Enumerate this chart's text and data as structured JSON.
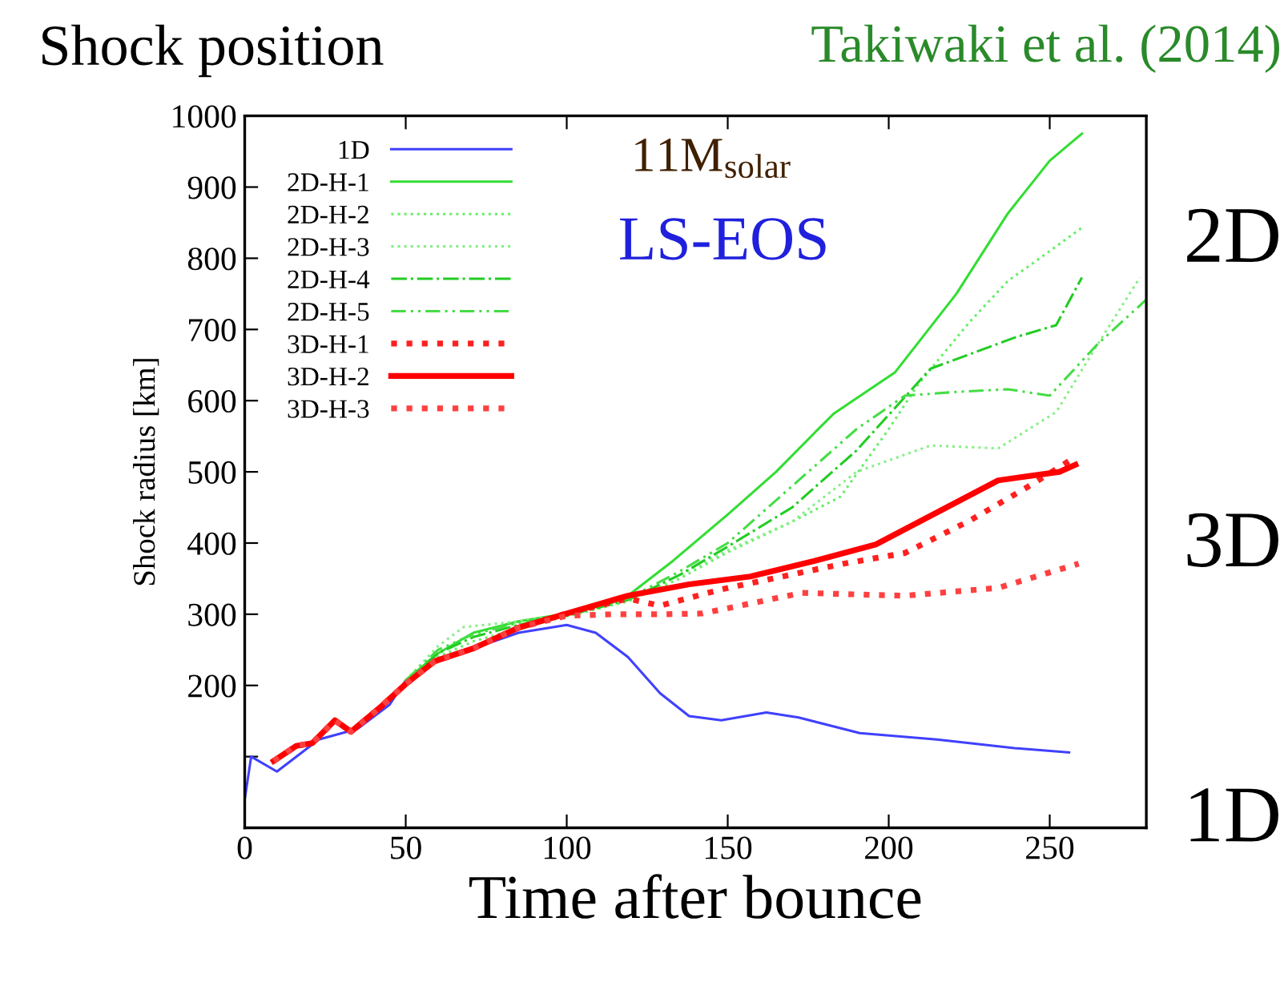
{
  "chart_data": {
    "type": "line",
    "title": "Shock position",
    "xlabel": "Time after bounce",
    "ylabel": "Shock radius [km]",
    "annotations": [
      "Takiwaki et al. (2014)",
      "11M$_{solar}$",
      "LS-EOS",
      "2D",
      "3D",
      "1D"
    ],
    "xlim": [
      0,
      280
    ],
    "xticks": [
      0,
      50,
      100,
      150,
      200,
      250
    ],
    "ylim": [
      0,
      1000
    ],
    "yticks": [
      {
        "value": 0,
        "label": null
      },
      {
        "value": 100,
        "label": null
      },
      200,
      300,
      400,
      500,
      600,
      700,
      800,
      900,
      1000
    ],
    "grid": false,
    "legend": "top left",
    "series": [
      {
        "name": "1D",
        "color": "#4040ff",
        "line_style": "solid",
        "x": [
          0,
          2,
          10,
          23,
          35,
          45,
          50,
          57,
          71,
          85,
          100,
          109,
          119,
          129,
          138,
          148,
          162,
          172,
          191,
          215,
          239,
          256
        ],
        "values": [
          40,
          100,
          79,
          124,
          139,
          173,
          207,
          229,
          252,
          274,
          285,
          274,
          240,
          189,
          157,
          151,
          162,
          155,
          133,
          124,
          112,
          106
        ]
      },
      {
        "name": "2D-H-1",
        "color": "#33dd33",
        "line_style": "solid",
        "x": [
          50,
          60,
          71,
          85,
          100,
          119,
          133,
          150,
          165,
          177,
          183,
          202,
          221,
          237,
          250,
          260
        ],
        "values": [
          207,
          245,
          274,
          290,
          301,
          326,
          375,
          440,
          500,
          555,
          582,
          640,
          750,
          863,
          937,
          975
        ]
      },
      {
        "name": "2D-H-2",
        "color": "#66ee66",
        "line_style": "dotted",
        "x": [
          50,
          60,
          71,
          85,
          100,
          119,
          135,
          150,
          170,
          185,
          200,
          209,
          225,
          237,
          250,
          260
        ],
        "values": [
          207,
          240,
          262,
          280,
          297,
          318,
          350,
          387,
          430,
          465,
          560,
          622,
          710,
          768,
          810,
          843
        ]
      },
      {
        "name": "2D-H-3",
        "color": "#88ee88",
        "line_style": "dotted",
        "x": [
          50,
          60,
          68,
          85,
          100,
          119,
          135,
          150,
          170,
          190,
          213,
          234,
          252,
          265,
          278
        ],
        "values": [
          207,
          255,
          282,
          290,
          300,
          320,
          355,
          390,
          430,
          500,
          537,
          533,
          584,
          680,
          773
        ]
      },
      {
        "name": "2D-H-4",
        "color": "#22cc22",
        "line_style": "dashdot",
        "x": [
          50,
          60,
          71,
          85,
          100,
          119,
          135,
          150,
          170,
          190,
          213,
          240,
          252,
          260
        ],
        "values": [
          207,
          245,
          268,
          285,
          298,
          320,
          355,
          395,
          450,
          530,
          645,
          690,
          706,
          773
        ]
      },
      {
        "name": "2D-H-5",
        "color": "#44dd44",
        "line_style": "dashdotdot",
        "x": [
          50,
          60,
          71,
          85,
          100,
          119,
          135,
          150,
          170,
          190,
          205,
          220,
          237,
          250,
          265,
          280
        ],
        "values": [
          207,
          250,
          272,
          288,
          300,
          322,
          360,
          400,
          480,
          560,
          607,
          612,
          616,
          607,
          680,
          742
        ]
      },
      {
        "name": "3D-H-1",
        "color": "#ff2020",
        "line_style": "dotted",
        "x": [
          9,
          16,
          21,
          28,
          33,
          42,
          50,
          59,
          71,
          85,
          100,
          119,
          129,
          148,
          167,
          186,
          205,
          225,
          244,
          258
        ],
        "values": [
          94,
          115,
          119,
          151,
          135,
          169,
          202,
          234,
          252,
          281,
          301,
          322,
          312,
          335,
          353,
          371,
          386,
          431,
          481,
          521
        ]
      },
      {
        "name": "3D-H-2",
        "color": "#ff0000",
        "line_style": "solid",
        "x": [
          9,
          16,
          21,
          28,
          33,
          42,
          50,
          59,
          71,
          85,
          100,
          119,
          138,
          157,
          177,
          196,
          215,
          234,
          253,
          258
        ],
        "values": [
          94,
          115,
          119,
          151,
          135,
          169,
          202,
          234,
          252,
          281,
          301,
          326,
          342,
          353,
          375,
          398,
          443,
          488,
          500,
          510
        ]
      },
      {
        "name": "3D-H-3",
        "color": "#ff4040",
        "line_style": "dotted",
        "x": [
          9,
          16,
          21,
          28,
          33,
          42,
          50,
          59,
          71,
          85,
          100,
          115,
          130,
          142,
          173,
          205,
          234,
          259
        ],
        "values": [
          94,
          115,
          119,
          151,
          135,
          169,
          202,
          234,
          252,
          281,
          298,
          300,
          300,
          301,
          330,
          326,
          337,
          371
        ]
      }
    ]
  }
}
